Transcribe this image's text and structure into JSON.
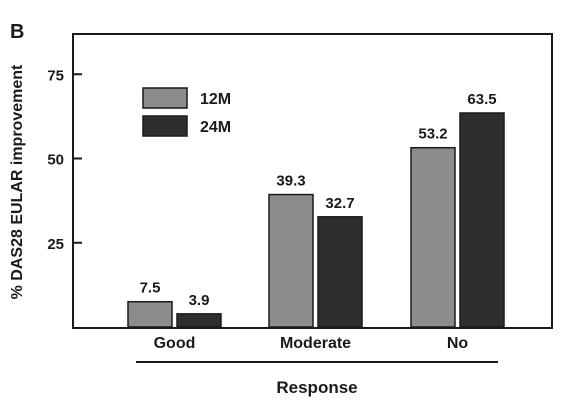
{
  "chart_data": {
    "type": "bar",
    "panel_label": "B",
    "categories": [
      "Good",
      "Moderate",
      "No"
    ],
    "series": [
      {
        "name": "12M",
        "values": [
          7.5,
          39.3,
          53.2
        ],
        "color": "#8c8c8c"
      },
      {
        "name": "24M",
        "values": [
          3.9,
          32.7,
          63.5
        ],
        "color": "#2e2e2e"
      }
    ],
    "data_labels": [
      [
        "7.5",
        "39.3",
        "53.2"
      ],
      [
        "3.9",
        "32.7",
        "63.5"
      ]
    ],
    "ylabel": "% DAS28 EULAR improvement",
    "xlabel": "Response",
    "yticks": [
      "25",
      "50",
      "75"
    ],
    "ylim": [
      0,
      85
    ],
    "legend_position": "top-left",
    "grid": false
  }
}
